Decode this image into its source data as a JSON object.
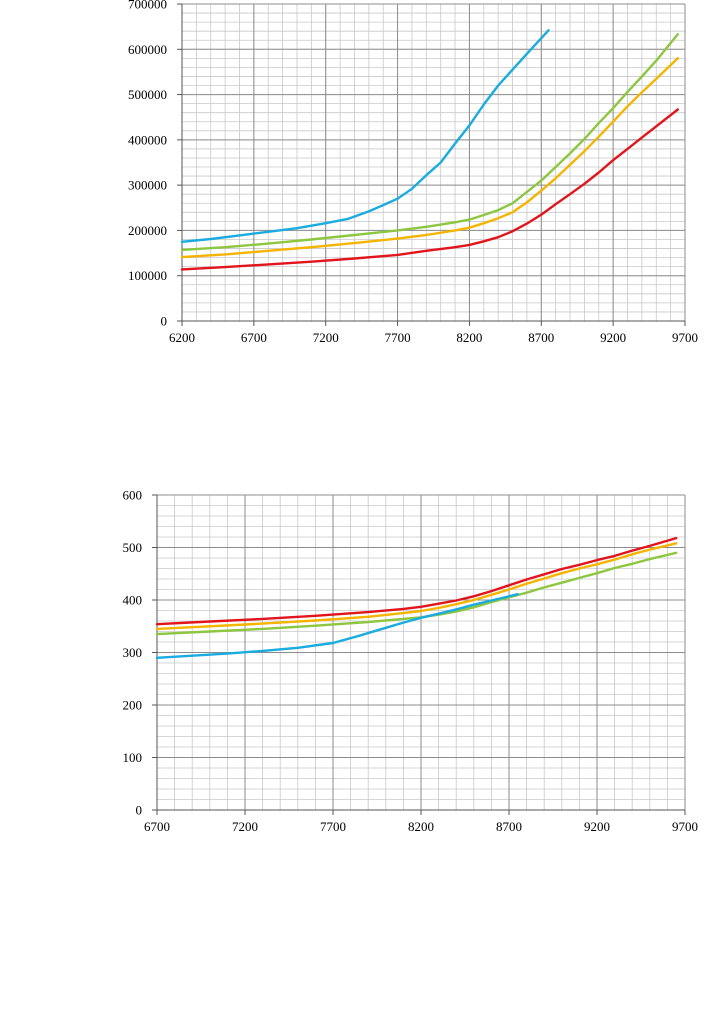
{
  "chart_data": [
    {
      "type": "line",
      "title": "",
      "xlabel": "",
      "ylabel": "",
      "xlim": [
        6200,
        9700
      ],
      "ylim": [
        0,
        700000
      ],
      "x_ticks": [
        6200,
        6700,
        7200,
        7700,
        8200,
        8700,
        9200,
        9700
      ],
      "y_ticks": [
        0,
        100000,
        200000,
        300000,
        400000,
        500000,
        600000,
        700000
      ],
      "x_tick_labels": [
        "6200",
        "6700",
        "7200",
        "7700",
        "8200",
        "8700",
        "9200",
        "9700"
      ],
      "y_tick_labels": [
        "0",
        "100000",
        "200000",
        "300000",
        "400000",
        "500000",
        "600000",
        "700000"
      ],
      "x_minor_step": 100,
      "y_minor_step": 20000,
      "grid": true,
      "series": [
        {
          "color": "#1AABDF",
          "x": [
            6200,
            6400,
            6600,
            6800,
            7000,
            7200,
            7350,
            7500,
            7600,
            7700,
            7800,
            7900,
            8000,
            8100,
            8200,
            8300,
            8400,
            8500,
            8600,
            8750
          ],
          "y": [
            175000,
            181000,
            189000,
            197000,
            205000,
            216000,
            225000,
            242000,
            256000,
            270000,
            292000,
            322000,
            350000,
            392000,
            432000,
            478000,
            520000,
            555000,
            590000,
            642000
          ]
        },
        {
          "color": "#8DC63F",
          "x": [
            6200,
            6500,
            6800,
            7100,
            7400,
            7700,
            7900,
            8100,
            8200,
            8300,
            8400,
            8500,
            8600,
            8700,
            8800,
            8900,
            9000,
            9100,
            9200,
            9300,
            9400,
            9500,
            9650
          ],
          "y": [
            157000,
            163000,
            171000,
            180000,
            190000,
            200000,
            208000,
            218000,
            224000,
            234000,
            245000,
            260000,
            285000,
            310000,
            340000,
            370000,
            402000,
            437000,
            470000,
            506000,
            540000,
            575000,
            633000
          ]
        },
        {
          "color": "#F5B400",
          "x": [
            6200,
            6500,
            6800,
            7100,
            7400,
            7700,
            7900,
            8100,
            8200,
            8300,
            8400,
            8500,
            8600,
            8700,
            8800,
            8900,
            9000,
            9100,
            9200,
            9300,
            9400,
            9500,
            9650
          ],
          "y": [
            141000,
            147000,
            155000,
            163000,
            172000,
            182000,
            190000,
            200000,
            206000,
            216000,
            227000,
            240000,
            262000,
            288000,
            315000,
            345000,
            375000,
            407000,
            440000,
            474000,
            505000,
            535000,
            580000
          ]
        },
        {
          "color": "#E2141C",
          "x": [
            6200,
            6500,
            6800,
            7100,
            7400,
            7700,
            7900,
            8100,
            8200,
            8300,
            8400,
            8500,
            8600,
            8700,
            8800,
            8900,
            9000,
            9100,
            9200,
            9300,
            9400,
            9500,
            9650
          ],
          "y": [
            114000,
            119000,
            125000,
            131000,
            138000,
            146000,
            155000,
            163000,
            168000,
            176000,
            185000,
            198000,
            215000,
            235000,
            258000,
            280000,
            303000,
            328000,
            355000,
            380000,
            405000,
            430000,
            467000
          ]
        }
      ]
    },
    {
      "type": "line",
      "title": "",
      "xlabel": "",
      "ylabel": "",
      "xlim": [
        6700,
        9700
      ],
      "ylim": [
        0,
        600
      ],
      "x_ticks": [
        6700,
        7200,
        7700,
        8200,
        8700,
        9200,
        9700
      ],
      "y_ticks": [
        0,
        100,
        200,
        300,
        400,
        500,
        600
      ],
      "x_tick_labels": [
        "6700",
        "7200",
        "7700",
        "8200",
        "8700",
        "9200",
        "9700"
      ],
      "y_tick_labels": [
        "0",
        "100",
        "200",
        "300",
        "400",
        "500",
        "600"
      ],
      "x_minor_step": 100,
      "y_minor_step": 20,
      "grid": true,
      "series": [
        {
          "color": "#E2141C",
          "x": [
            6700,
            7000,
            7300,
            7600,
            7900,
            8100,
            8200,
            8300,
            8400,
            8500,
            8600,
            8700,
            8800,
            8900,
            9000,
            9100,
            9200,
            9300,
            9400,
            9500,
            9650
          ],
          "y": [
            354,
            359,
            364,
            370,
            377,
            383,
            387,
            393,
            399,
            407,
            417,
            428,
            439,
            449,
            459,
            467,
            476,
            484,
            494,
            503,
            518
          ]
        },
        {
          "color": "#F5B400",
          "x": [
            6700,
            7000,
            7300,
            7600,
            7900,
            8100,
            8200,
            8300,
            8400,
            8500,
            8600,
            8700,
            8800,
            8900,
            9000,
            9100,
            9200,
            9300,
            9400,
            9500,
            9650
          ],
          "y": [
            345,
            350,
            355,
            361,
            368,
            375,
            379,
            385,
            392,
            400,
            410,
            420,
            431,
            441,
            451,
            460,
            468,
            477,
            487,
            496,
            508
          ]
        },
        {
          "color": "#8DC63F",
          "x": [
            6700,
            7000,
            7300,
            7600,
            7900,
            8100,
            8200,
            8300,
            8400,
            8500,
            8600,
            8700,
            8800,
            8900,
            9000,
            9100,
            9200,
            9300,
            9400,
            9500,
            9650
          ],
          "y": [
            335,
            340,
            345,
            351,
            358,
            364,
            367,
            372,
            378,
            386,
            396,
            405,
            414,
            424,
            433,
            442,
            451,
            461,
            469,
            478,
            490
          ]
        },
        {
          "color": "#1AABDF",
          "x": [
            6700,
            6900,
            7100,
            7300,
            7500,
            7700,
            7850,
            8000,
            8100,
            8200,
            8300,
            8400,
            8500,
            8600,
            8750
          ],
          "y": [
            290,
            294,
            298,
            303,
            309,
            318,
            332,
            347,
            357,
            366,
            374,
            382,
            391,
            399,
            411
          ]
        }
      ]
    }
  ]
}
